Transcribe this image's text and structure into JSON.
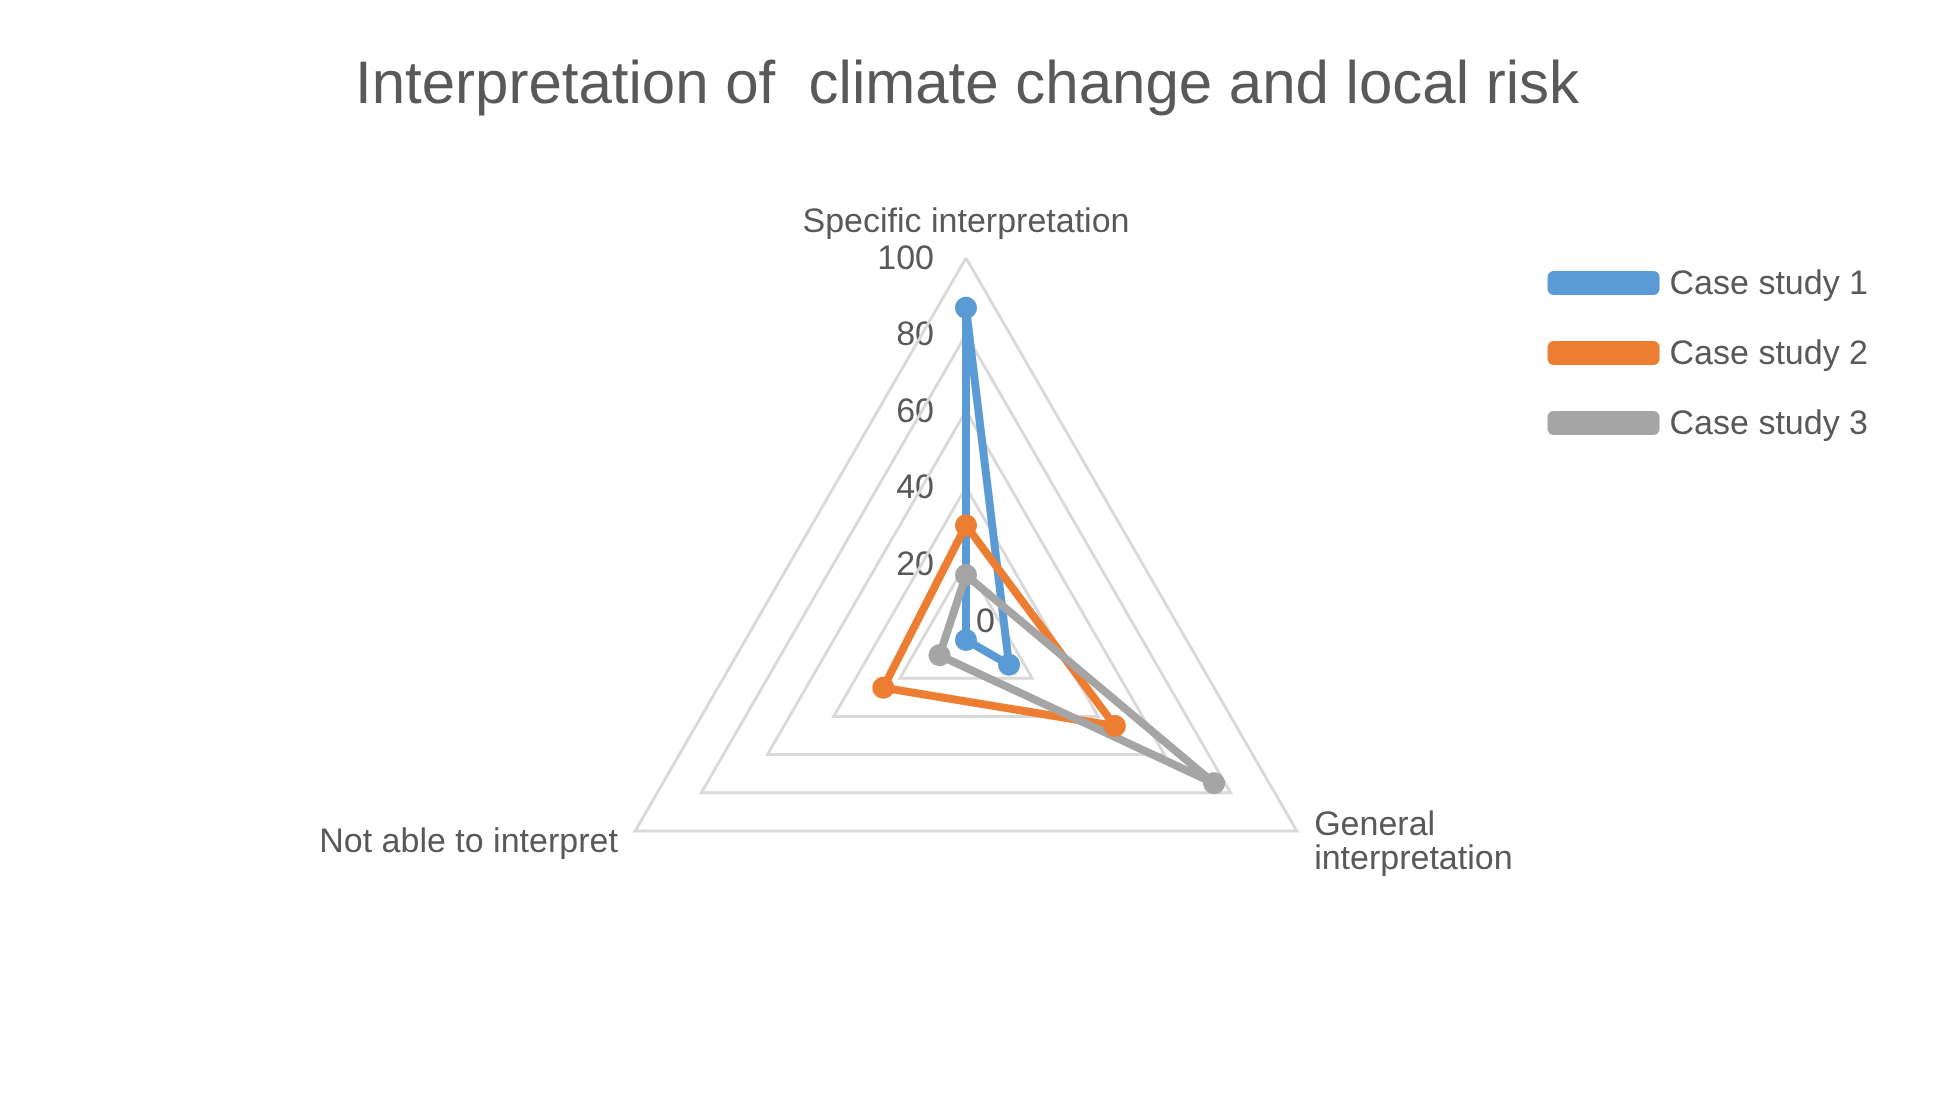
{
  "chart_data": {
    "type": "radar",
    "title": "Interpretation of  climate change and local risk",
    "categories": [
      "Specific interpretation",
      "General interpretation",
      "Not able to interpret"
    ],
    "series": [
      {
        "name": "Case study 1",
        "color": "#5b9bd5",
        "values": [
          87,
          13,
          0
        ]
      },
      {
        "name": "Case study 2",
        "color": "#ed7d31",
        "values": [
          30,
          45,
          25
        ]
      },
      {
        "name": "Case study 3",
        "color": "#a5a5a5",
        "values": [
          17,
          75,
          8
        ]
      }
    ],
    "ylim": [
      0,
      100
    ],
    "yticks": [
      0,
      20,
      40,
      60,
      80,
      100
    ],
    "legend": "right",
    "marker": "circle",
    "line_style": "solid"
  }
}
